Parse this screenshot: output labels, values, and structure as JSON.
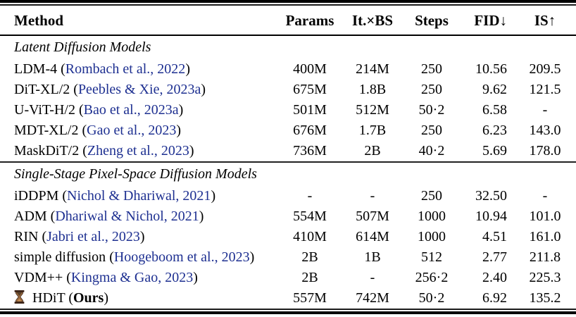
{
  "colors": {
    "background": "#ffffff",
    "text": "#000000",
    "citation_link": "#1e3091"
  },
  "table": {
    "columns": [
      {
        "label": "Method",
        "align": "left"
      },
      {
        "label": "Params",
        "align": "center"
      },
      {
        "label": "It.×BS",
        "align": "center"
      },
      {
        "label": "Steps",
        "align": "center"
      },
      {
        "label": "FID↓",
        "align": "right"
      },
      {
        "label": "IS↑",
        "align": "center"
      }
    ],
    "sections": [
      {
        "title": "Latent Diffusion Models",
        "rows": [
          {
            "method": "LDM-4",
            "citation": "Rombach et al., 2022",
            "params": "400M",
            "it_bs": "214M",
            "steps": "250",
            "fid": "10.56",
            "is": "209.5"
          },
          {
            "method": "DiT-XL/2",
            "citation": "Peebles & Xie, 2023a",
            "params": "675M",
            "it_bs": "1.8B",
            "steps": "250",
            "fid": "9.62",
            "is": "121.5"
          },
          {
            "method": "U-ViT-H/2",
            "citation": "Bao et al., 2023a",
            "params": "501M",
            "it_bs": "512M",
            "steps": "50·2",
            "fid": "6.58",
            "is": "-"
          },
          {
            "method": "MDT-XL/2",
            "citation": "Gao et al., 2023",
            "params": "676M",
            "it_bs": "1.7B",
            "steps": "250",
            "fid": "6.23",
            "is": "143.0"
          },
          {
            "method": "MaskDiT/2",
            "citation": "Zheng et al., 2023",
            "params": "736M",
            "it_bs": "2B",
            "steps": "40·2",
            "fid": "5.69",
            "is": "178.0"
          }
        ]
      },
      {
        "title": "Single-Stage Pixel-Space Diffusion Models",
        "rows": [
          {
            "method": "iDDPM",
            "citation": "Nichol & Dhariwal, 2021",
            "params": "-",
            "it_bs": "-",
            "steps": "250",
            "fid": "32.50",
            "is": "-"
          },
          {
            "method": "ADM",
            "citation": "Dhariwal & Nichol, 2021",
            "params": "554M",
            "it_bs": "507M",
            "steps": "1000",
            "fid": "10.94",
            "is": "101.0"
          },
          {
            "method": "RIN",
            "citation": "Jabri et al., 2023",
            "params": "410M",
            "it_bs": "614M",
            "steps": "1000",
            "fid": "4.51",
            "is": "161.0"
          },
          {
            "method": "simple diffusion",
            "citation": "Hoogeboom et al., 2023",
            "params": "2B",
            "it_bs": "1B",
            "steps": "512",
            "fid": "2.77",
            "is": "211.8"
          },
          {
            "method": "VDM++",
            "citation": "Kingma & Gao, 2023",
            "params": "2B",
            "it_bs": "-",
            "steps": "256·2",
            "fid": "2.40",
            "is": "225.3"
          },
          {
            "method": "HDiT",
            "icon": "hourglass-icon",
            "ours": "Ours",
            "params": "557M",
            "it_bs": "742M",
            "steps": "50·2",
            "fid": "6.92",
            "is": "135.2"
          }
        ]
      }
    ]
  }
}
